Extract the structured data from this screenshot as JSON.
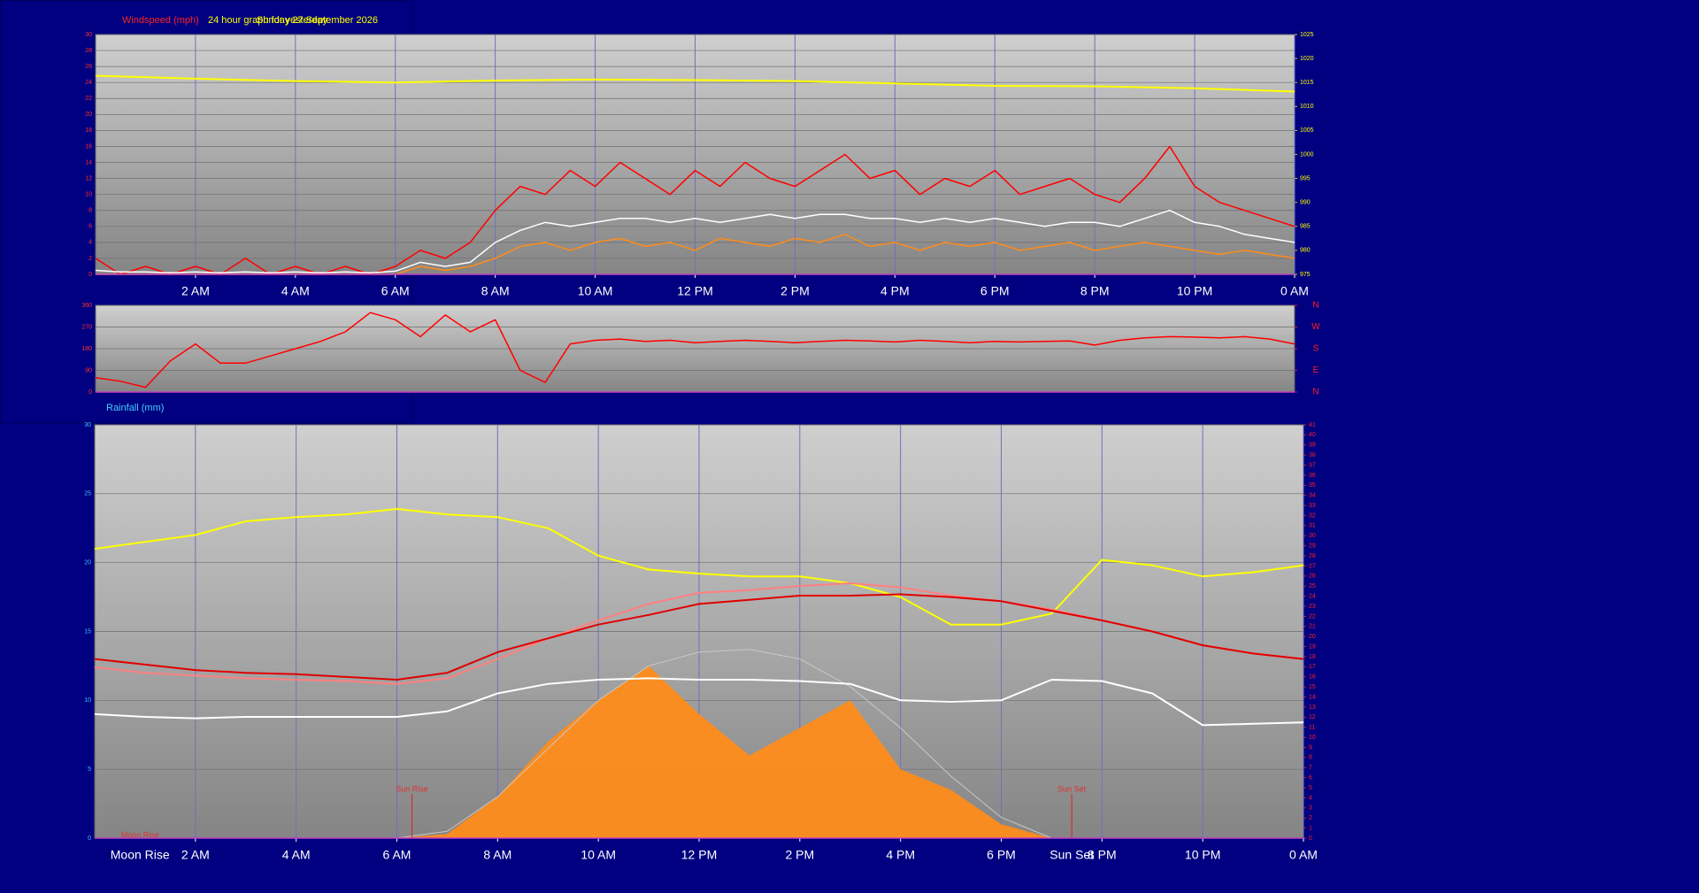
{
  "chart_data": [
    {
      "type": "line",
      "title": "Windspeed (mph)",
      "subtitle": "24 hour graph for yesterday",
      "date_label": "Sunday 27 September 2026",
      "x": [
        0,
        0.5,
        1,
        1.5,
        2,
        2.5,
        3,
        3.5,
        4,
        4.5,
        5,
        5.5,
        6,
        6.5,
        7,
        7.5,
        8,
        8.5,
        9,
        9.5,
        10,
        10.5,
        11,
        11.5,
        12,
        12.5,
        13,
        13.5,
        14,
        14.5,
        15,
        15.5,
        16,
        16.5,
        17,
        17.5,
        18,
        18.5,
        19,
        19.5,
        20,
        20.5,
        21,
        21.5,
        22,
        22.5,
        23,
        23.5,
        24
      ],
      "xlim": [
        0,
        24
      ],
      "xticks": [
        {
          "value": 2,
          "label": "2 AM"
        },
        {
          "value": 4,
          "label": "4 AM"
        },
        {
          "value": 6,
          "label": "6 AM"
        },
        {
          "value": 8,
          "label": "8 AM"
        },
        {
          "value": 10,
          "label": "10 AM"
        },
        {
          "value": 12,
          "label": "12 PM"
        },
        {
          "value": 14,
          "label": "2 PM"
        },
        {
          "value": 16,
          "label": "4 PM"
        },
        {
          "value": 18,
          "label": "6 PM"
        },
        {
          "value": 20,
          "label": "8 PM"
        },
        {
          "value": 22,
          "label": "10 PM"
        },
        {
          "value": 24,
          "label": "0 AM"
        }
      ],
      "ylim": [
        0,
        30
      ],
      "yticks": [
        0,
        2,
        4,
        6,
        8,
        10,
        12,
        14,
        16,
        18,
        20,
        22,
        24,
        26,
        28,
        30
      ],
      "y2lim": [
        975,
        1025
      ],
      "y2ticks": [
        975,
        980,
        985,
        990,
        995,
        1000,
        1005,
        1010,
        1015,
        1020,
        1025
      ],
      "grid": true,
      "series": [
        {
          "color": "#ff0000",
          "width": 1.5,
          "values": [
            2,
            0,
            1,
            0,
            1,
            0,
            2,
            0,
            1,
            0,
            1,
            0,
            1,
            3,
            2,
            4,
            8,
            11,
            10,
            13,
            11,
            14,
            12,
            10,
            13,
            11,
            14,
            12,
            11,
            13,
            15,
            12,
            13,
            10,
            12,
            11,
            13,
            10,
            11,
            12,
            10,
            9,
            12,
            16,
            11,
            9,
            8,
            7,
            6
          ]
        },
        {
          "color": "#ff8c1a",
          "width": 1.5,
          "values": [
            0,
            0,
            0,
            0,
            0,
            0,
            0,
            0,
            0,
            0,
            0,
            0,
            0,
            1,
            0.5,
            1,
            2,
            3.5,
            4,
            3,
            4,
            4.5,
            3.5,
            4,
            3,
            4.5,
            4,
            3.5,
            4.5,
            4,
            5,
            3.5,
            4,
            3,
            4,
            3.5,
            4,
            3,
            3.5,
            4,
            3,
            3.5,
            4,
            3.5,
            3,
            2.5,
            3,
            2.5,
            2
          ]
        },
        {
          "color": "#ffffff",
          "width": 1.5,
          "values": [
            0.5,
            0.3,
            0.3,
            0.2,
            0.3,
            0.2,
            0.3,
            0.2,
            0.3,
            0.2,
            0.3,
            0.2,
            0.4,
            1.5,
            1,
            1.5,
            4,
            5.5,
            6.5,
            6,
            6.5,
            7,
            7,
            6.5,
            7,
            6.5,
            7,
            7.5,
            7,
            7.5,
            7.5,
            7,
            7,
            6.5,
            7,
            6.5,
            7,
            6.5,
            6,
            6.5,
            6.5,
            6,
            7,
            8,
            6.5,
            6,
            5,
            4.5,
            4
          ]
        },
        {
          "color": "#ffff00",
          "width": 2,
          "axis": "y2",
          "x": [
            0,
            2,
            4,
            6,
            8,
            10,
            12,
            14,
            16,
            18,
            20,
            22,
            24
          ],
          "values": [
            1016.4,
            1015.8,
            1015.3,
            1015,
            1015.4,
            1015.6,
            1015.5,
            1015.3,
            1014.8,
            1014.3,
            1014.2,
            1013.8,
            1013.1
          ]
        }
      ]
    },
    {
      "type": "line",
      "x": [
        0,
        0.5,
        1,
        1.5,
        2,
        2.5,
        3,
        3.5,
        4,
        4.5,
        5,
        5.5,
        6,
        6.5,
        7,
        7.5,
        8,
        8.5,
        9,
        9.5,
        10,
        10.5,
        11,
        11.5,
        12,
        12.5,
        13,
        13.5,
        14,
        14.5,
        15,
        15.5,
        16,
        16.5,
        17,
        17.5,
        18,
        18.5,
        19,
        19.5,
        20,
        20.5,
        21,
        21.5,
        22,
        22.5,
        23,
        23.5,
        24
      ],
      "xlim": [
        0,
        24
      ],
      "ylim": [
        0,
        360
      ],
      "yticks": [
        0,
        90,
        180,
        270,
        360
      ],
      "y2lim": [
        0,
        360
      ],
      "y2ticks": [
        {
          "value": 360,
          "label": "N"
        },
        {
          "value": 270,
          "label": "W"
        },
        {
          "value": 180,
          "label": "S"
        },
        {
          "value": 90,
          "label": "E"
        },
        {
          "value": 0,
          "label": "N"
        }
      ],
      "grid": true,
      "series": [
        {
          "color": "#ff0000",
          "width": 1.5,
          "values": [
            60,
            45,
            20,
            130,
            200,
            120,
            120,
            150,
            180,
            210,
            250,
            330,
            300,
            230,
            320,
            250,
            300,
            90,
            40,
            200,
            215,
            220,
            210,
            215,
            205,
            210,
            215,
            210,
            205,
            210,
            215,
            212,
            208,
            215,
            210,
            205,
            210,
            208,
            210,
            212,
            195,
            215,
            225,
            230,
            228,
            225,
            230,
            220,
            200
          ]
        }
      ]
    },
    {
      "type": "line",
      "title": "Rainfall (mm)",
      "x": [
        0,
        1,
        2,
        3,
        4,
        5,
        6,
        7,
        8,
        9,
        10,
        11,
        12,
        13,
        14,
        15,
        16,
        17,
        18,
        19,
        20,
        21,
        22,
        23,
        24
      ],
      "xlim": [
        0,
        24
      ],
      "xticks": [
        {
          "value": 2,
          "label": "2 AM"
        },
        {
          "value": 4,
          "label": "4 AM"
        },
        {
          "value": 6,
          "label": "6 AM"
        },
        {
          "value": 8,
          "label": "8 AM"
        },
        {
          "value": 10,
          "label": "10 AM"
        },
        {
          "value": 12,
          "label": "12 PM"
        },
        {
          "value": 14,
          "label": "2 PM"
        },
        {
          "value": 16,
          "label": "4 PM"
        },
        {
          "value": 18,
          "label": "6 PM"
        },
        {
          "value": 20,
          "label": "8 PM"
        },
        {
          "value": 22,
          "label": "10 PM"
        },
        {
          "value": 24,
          "label": "0 AM"
        }
      ],
      "ylim": [
        0,
        30
      ],
      "yticks": [
        0,
        5,
        10,
        15,
        20,
        25,
        30
      ],
      "y2lim": [
        0,
        41
      ],
      "y2ticks": [
        0,
        1,
        2,
        3,
        4,
        5,
        6,
        7,
        8,
        9,
        10,
        11,
        12,
        13,
        14,
        15,
        16,
        17,
        18,
        19,
        20,
        21,
        22,
        23,
        24,
        25,
        26,
        27,
        28,
        29,
        30,
        31,
        32,
        33,
        34,
        35,
        36,
        37,
        38,
        39,
        40,
        41
      ],
      "grid": true,
      "series": [
        {
          "color": "#ff8c1a",
          "style": "area",
          "values": [
            0,
            0,
            0,
            0,
            0,
            0,
            0,
            0.3,
            3,
            7,
            10,
            12.5,
            9,
            6,
            8,
            10,
            5,
            3.5,
            1,
            0,
            0,
            0,
            0,
            0,
            0
          ]
        },
        {
          "color": "#c8c8c8",
          "width": 1,
          "values": [
            0,
            0,
            0,
            0,
            0,
            0,
            0,
            0.5,
            3,
            6.5,
            10,
            12.5,
            13.5,
            13.7,
            13,
            11,
            8,
            4.5,
            1.5,
            0,
            0,
            0,
            0,
            0,
            0
          ]
        },
        {
          "color": "#ffff00",
          "width": 2,
          "values": [
            21,
            21.5,
            22,
            23,
            23.3,
            23.5,
            23.9,
            23.5,
            23.3,
            22.5,
            20.5,
            19.5,
            19.2,
            19,
            19,
            18.5,
            17.5,
            15.5,
            15.5,
            16.3,
            20.2,
            19.8,
            19,
            19.3,
            19.8
          ]
        },
        {
          "color": "#ff8080",
          "width": 2,
          "values": [
            12.4,
            12,
            11.8,
            11.6,
            11.5,
            11.4,
            11.2,
            11.6,
            13,
            14.5,
            15.8,
            17,
            17.8,
            18,
            18.3,
            18.5,
            18.2,
            17.6,
            17.2,
            16.6,
            15.8,
            15,
            14,
            13.4,
            13
          ]
        },
        {
          "color": "#e00000",
          "width": 2,
          "values": [
            13,
            12.6,
            12.2,
            12,
            11.9,
            11.7,
            11.5,
            12,
            13.5,
            14.5,
            15.5,
            16.2,
            17,
            17.3,
            17.6,
            17.6,
            17.7,
            17.5,
            17.2,
            16.5,
            15.8,
            15,
            14,
            13.4,
            13
          ]
        },
        {
          "color": "#ffffff",
          "width": 2,
          "values": [
            9,
            8.8,
            8.7,
            8.8,
            8.8,
            8.8,
            8.8,
            9.2,
            10.5,
            11.2,
            11.5,
            11.6,
            11.5,
            11.5,
            11.4,
            11.2,
            10,
            9.9,
            10,
            11.5,
            11.4,
            10.5,
            8.2,
            8.3,
            8.4
          ]
        }
      ],
      "annotations": [
        {
          "text": "Sun Rise",
          "x": 6.3,
          "marker": true
        },
        {
          "text": "Sun Set",
          "x": 19.4,
          "marker": true,
          "axis_row": true
        },
        {
          "text": "Moon Rise",
          "x": 0.9,
          "axis_row": true
        }
      ]
    }
  ]
}
